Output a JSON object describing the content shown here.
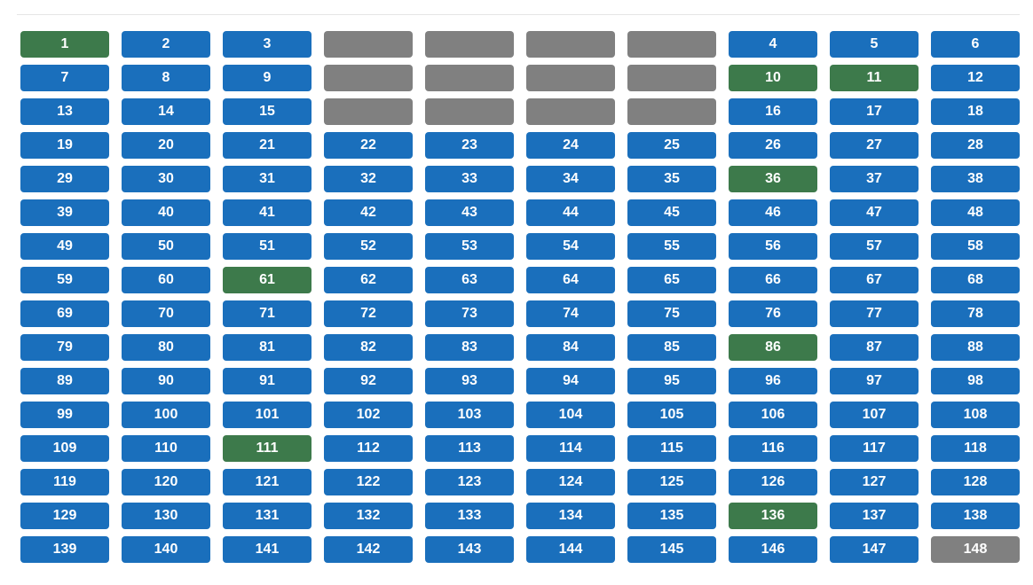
{
  "colors": {
    "default": "#1a6fbc",
    "selected": "#3d7a4b",
    "disabled": "#808080"
  },
  "grid": {
    "columns": 10,
    "cells": [
      {
        "label": "1",
        "state": "selected"
      },
      {
        "label": "2",
        "state": "default"
      },
      {
        "label": "3",
        "state": "default"
      },
      {
        "label": "",
        "state": "disabled"
      },
      {
        "label": "",
        "state": "disabled"
      },
      {
        "label": "",
        "state": "disabled"
      },
      {
        "label": "",
        "state": "disabled"
      },
      {
        "label": "4",
        "state": "default"
      },
      {
        "label": "5",
        "state": "default"
      },
      {
        "label": "6",
        "state": "default"
      },
      {
        "label": "7",
        "state": "default"
      },
      {
        "label": "8",
        "state": "default"
      },
      {
        "label": "9",
        "state": "default"
      },
      {
        "label": "",
        "state": "disabled"
      },
      {
        "label": "",
        "state": "disabled"
      },
      {
        "label": "",
        "state": "disabled"
      },
      {
        "label": "",
        "state": "disabled"
      },
      {
        "label": "10",
        "state": "selected"
      },
      {
        "label": "11",
        "state": "selected"
      },
      {
        "label": "12",
        "state": "default"
      },
      {
        "label": "13",
        "state": "default"
      },
      {
        "label": "14",
        "state": "default"
      },
      {
        "label": "15",
        "state": "default"
      },
      {
        "label": "",
        "state": "disabled"
      },
      {
        "label": "",
        "state": "disabled"
      },
      {
        "label": "",
        "state": "disabled"
      },
      {
        "label": "",
        "state": "disabled"
      },
      {
        "label": "16",
        "state": "default"
      },
      {
        "label": "17",
        "state": "default"
      },
      {
        "label": "18",
        "state": "default"
      },
      {
        "label": "19",
        "state": "default"
      },
      {
        "label": "20",
        "state": "default"
      },
      {
        "label": "21",
        "state": "default"
      },
      {
        "label": "22",
        "state": "default"
      },
      {
        "label": "23",
        "state": "default"
      },
      {
        "label": "24",
        "state": "default"
      },
      {
        "label": "25",
        "state": "default"
      },
      {
        "label": "26",
        "state": "default"
      },
      {
        "label": "27",
        "state": "default"
      },
      {
        "label": "28",
        "state": "default"
      },
      {
        "label": "29",
        "state": "default"
      },
      {
        "label": "30",
        "state": "default"
      },
      {
        "label": "31",
        "state": "default"
      },
      {
        "label": "32",
        "state": "default"
      },
      {
        "label": "33",
        "state": "default"
      },
      {
        "label": "34",
        "state": "default"
      },
      {
        "label": "35",
        "state": "default"
      },
      {
        "label": "36",
        "state": "selected"
      },
      {
        "label": "37",
        "state": "default"
      },
      {
        "label": "38",
        "state": "default"
      },
      {
        "label": "39",
        "state": "default"
      },
      {
        "label": "40",
        "state": "default"
      },
      {
        "label": "41",
        "state": "default"
      },
      {
        "label": "42",
        "state": "default"
      },
      {
        "label": "43",
        "state": "default"
      },
      {
        "label": "44",
        "state": "default"
      },
      {
        "label": "45",
        "state": "default"
      },
      {
        "label": "46",
        "state": "default"
      },
      {
        "label": "47",
        "state": "default"
      },
      {
        "label": "48",
        "state": "default"
      },
      {
        "label": "49",
        "state": "default"
      },
      {
        "label": "50",
        "state": "default"
      },
      {
        "label": "51",
        "state": "default"
      },
      {
        "label": "52",
        "state": "default"
      },
      {
        "label": "53",
        "state": "default"
      },
      {
        "label": "54",
        "state": "default"
      },
      {
        "label": "55",
        "state": "default"
      },
      {
        "label": "56",
        "state": "default"
      },
      {
        "label": "57",
        "state": "default"
      },
      {
        "label": "58",
        "state": "default"
      },
      {
        "label": "59",
        "state": "default"
      },
      {
        "label": "60",
        "state": "default"
      },
      {
        "label": "61",
        "state": "selected"
      },
      {
        "label": "62",
        "state": "default"
      },
      {
        "label": "63",
        "state": "default"
      },
      {
        "label": "64",
        "state": "default"
      },
      {
        "label": "65",
        "state": "default"
      },
      {
        "label": "66",
        "state": "default"
      },
      {
        "label": "67",
        "state": "default"
      },
      {
        "label": "68",
        "state": "default"
      },
      {
        "label": "69",
        "state": "default"
      },
      {
        "label": "70",
        "state": "default"
      },
      {
        "label": "71",
        "state": "default"
      },
      {
        "label": "72",
        "state": "default"
      },
      {
        "label": "73",
        "state": "default"
      },
      {
        "label": "74",
        "state": "default"
      },
      {
        "label": "75",
        "state": "default"
      },
      {
        "label": "76",
        "state": "default"
      },
      {
        "label": "77",
        "state": "default"
      },
      {
        "label": "78",
        "state": "default"
      },
      {
        "label": "79",
        "state": "default"
      },
      {
        "label": "80",
        "state": "default"
      },
      {
        "label": "81",
        "state": "default"
      },
      {
        "label": "82",
        "state": "default"
      },
      {
        "label": "83",
        "state": "default"
      },
      {
        "label": "84",
        "state": "default"
      },
      {
        "label": "85",
        "state": "default"
      },
      {
        "label": "86",
        "state": "selected"
      },
      {
        "label": "87",
        "state": "default"
      },
      {
        "label": "88",
        "state": "default"
      },
      {
        "label": "89",
        "state": "default"
      },
      {
        "label": "90",
        "state": "default"
      },
      {
        "label": "91",
        "state": "default"
      },
      {
        "label": "92",
        "state": "default"
      },
      {
        "label": "93",
        "state": "default"
      },
      {
        "label": "94",
        "state": "default"
      },
      {
        "label": "95",
        "state": "default"
      },
      {
        "label": "96",
        "state": "default"
      },
      {
        "label": "97",
        "state": "default"
      },
      {
        "label": "98",
        "state": "default"
      },
      {
        "label": "99",
        "state": "default"
      },
      {
        "label": "100",
        "state": "default"
      },
      {
        "label": "101",
        "state": "default"
      },
      {
        "label": "102",
        "state": "default"
      },
      {
        "label": "103",
        "state": "default"
      },
      {
        "label": "104",
        "state": "default"
      },
      {
        "label": "105",
        "state": "default"
      },
      {
        "label": "106",
        "state": "default"
      },
      {
        "label": "107",
        "state": "default"
      },
      {
        "label": "108",
        "state": "default"
      },
      {
        "label": "109",
        "state": "default"
      },
      {
        "label": "110",
        "state": "default"
      },
      {
        "label": "111",
        "state": "selected"
      },
      {
        "label": "112",
        "state": "default"
      },
      {
        "label": "113",
        "state": "default"
      },
      {
        "label": "114",
        "state": "default"
      },
      {
        "label": "115",
        "state": "default"
      },
      {
        "label": "116",
        "state": "default"
      },
      {
        "label": "117",
        "state": "default"
      },
      {
        "label": "118",
        "state": "default"
      },
      {
        "label": "119",
        "state": "default"
      },
      {
        "label": "120",
        "state": "default"
      },
      {
        "label": "121",
        "state": "default"
      },
      {
        "label": "122",
        "state": "default"
      },
      {
        "label": "123",
        "state": "default"
      },
      {
        "label": "124",
        "state": "default"
      },
      {
        "label": "125",
        "state": "default"
      },
      {
        "label": "126",
        "state": "default"
      },
      {
        "label": "127",
        "state": "default"
      },
      {
        "label": "128",
        "state": "default"
      },
      {
        "label": "129",
        "state": "default"
      },
      {
        "label": "130",
        "state": "default"
      },
      {
        "label": "131",
        "state": "default"
      },
      {
        "label": "132",
        "state": "default"
      },
      {
        "label": "133",
        "state": "default"
      },
      {
        "label": "134",
        "state": "default"
      },
      {
        "label": "135",
        "state": "default"
      },
      {
        "label": "136",
        "state": "selected"
      },
      {
        "label": "137",
        "state": "default"
      },
      {
        "label": "138",
        "state": "default"
      },
      {
        "label": "139",
        "state": "default"
      },
      {
        "label": "140",
        "state": "default"
      },
      {
        "label": "141",
        "state": "default"
      },
      {
        "label": "142",
        "state": "default"
      },
      {
        "label": "143",
        "state": "default"
      },
      {
        "label": "144",
        "state": "default"
      },
      {
        "label": "145",
        "state": "default"
      },
      {
        "label": "146",
        "state": "default"
      },
      {
        "label": "147",
        "state": "default"
      },
      {
        "label": "148",
        "state": "disabled"
      }
    ]
  }
}
